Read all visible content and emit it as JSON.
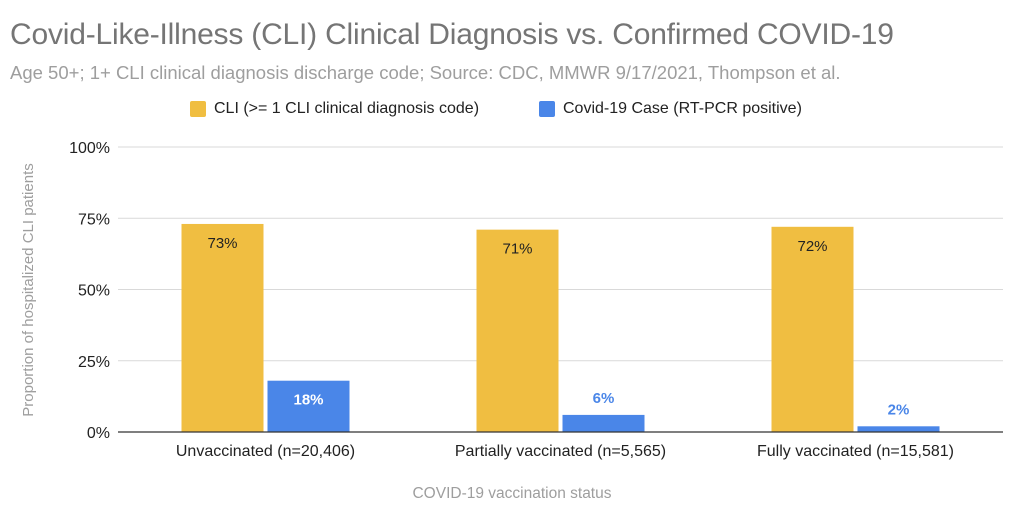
{
  "chart_data": {
    "type": "bar",
    "title": "Covid-Like-Illness (CLI) Clinical Diagnosis vs. Confirmed COVID-19",
    "subtitle": "Age 50+; 1+ CLI clinical diagnosis discharge code; Source: CDC, MMWR 9/17/2021, Thompson et al.",
    "xlabel": "COVID-19 vaccination status",
    "ylabel": "Proportion of hospitalized CLI patients",
    "categories": [
      "Unvaccinated (n=20,406)",
      "Partially vaccinated (n=5,565)",
      "Fully vaccinated (n=15,581)"
    ],
    "y_ticks": [
      "0%",
      "25%",
      "50%",
      "75%",
      "100%"
    ],
    "ylim": [
      0,
      100
    ],
    "grid": true,
    "legend_position": "top",
    "series": [
      {
        "name": "CLI (>= 1 CLI clinical diagnosis code)",
        "color": "#F0BE41",
        "values": [
          73,
          71,
          72
        ],
        "labels": [
          "73%",
          "71%",
          "72%"
        ]
      },
      {
        "name": "Covid-19 Case (RT-PCR positive)",
        "color": "#4A86E8",
        "values": [
          18,
          6,
          2
        ],
        "labels": [
          "18%",
          "6%",
          "2%"
        ]
      }
    ]
  }
}
